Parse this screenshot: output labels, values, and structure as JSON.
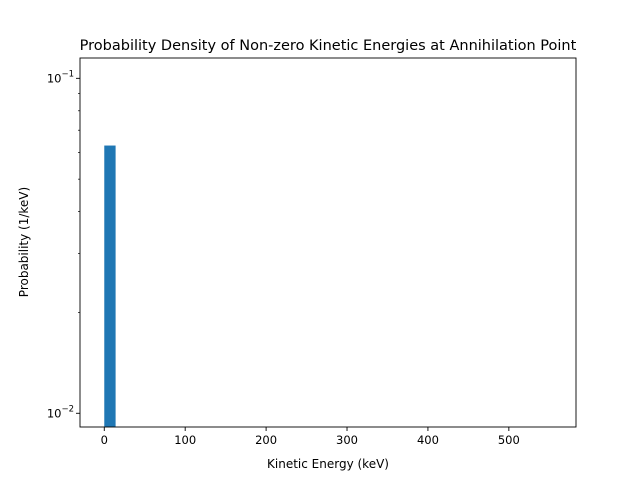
{
  "chart_data": {
    "type": "bar",
    "title": "Probability Density of Non-zero Kinetic Energies at Annihilation Point",
    "xlabel": "Kinetic Energy (keV)",
    "ylabel": "Probability (1/keV)",
    "yscale": "log",
    "xlim": [
      -30,
      583
    ],
    "ylim": [
      0.0091,
      0.115
    ],
    "x_ticks": [
      0,
      100,
      200,
      300,
      400,
      500
    ],
    "y_ticks": [
      {
        "value": 0.01,
        "label": "10",
        "exp": "−2"
      },
      {
        "value": 0.1,
        "label": "10",
        "exp": "−1"
      }
    ],
    "bar_color": "#1f77b4",
    "bars": [
      {
        "x_start": 0,
        "x_end": 14,
        "value": 0.063
      }
    ],
    "grid": false,
    "legend": "none"
  }
}
